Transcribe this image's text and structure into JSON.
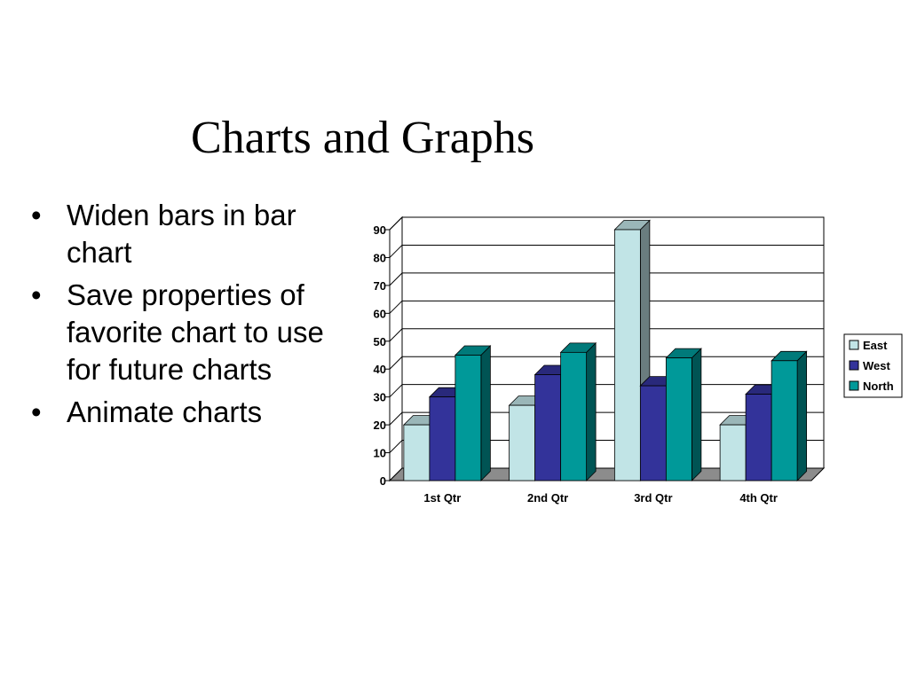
{
  "slide": {
    "title": "Charts and Graphs",
    "bullets": [
      "Widen bars in bar chart",
      "Save properties of favorite chart to use for future charts",
      "Animate charts"
    ]
  },
  "chart_data": {
    "type": "bar",
    "style": "3d-clustered-column",
    "categories": [
      "1st Qtr",
      "2nd Qtr",
      "3rd Qtr",
      "4th Qtr"
    ],
    "series": [
      {
        "name": "East",
        "values": [
          20,
          27,
          90,
          20
        ],
        "color": "#c1e4e6"
      },
      {
        "name": "West",
        "values": [
          30,
          38,
          34,
          31
        ],
        "color": "#33339a"
      },
      {
        "name": "North",
        "values": [
          45,
          46,
          44,
          43
        ],
        "color": "#009999"
      }
    ],
    "ylim": [
      0,
      90
    ],
    "yticks": [
      0,
      10,
      20,
      30,
      40,
      50,
      60,
      70,
      80,
      90
    ],
    "grid": true,
    "legend": "right",
    "title": "",
    "xlabel": "",
    "ylabel": ""
  }
}
